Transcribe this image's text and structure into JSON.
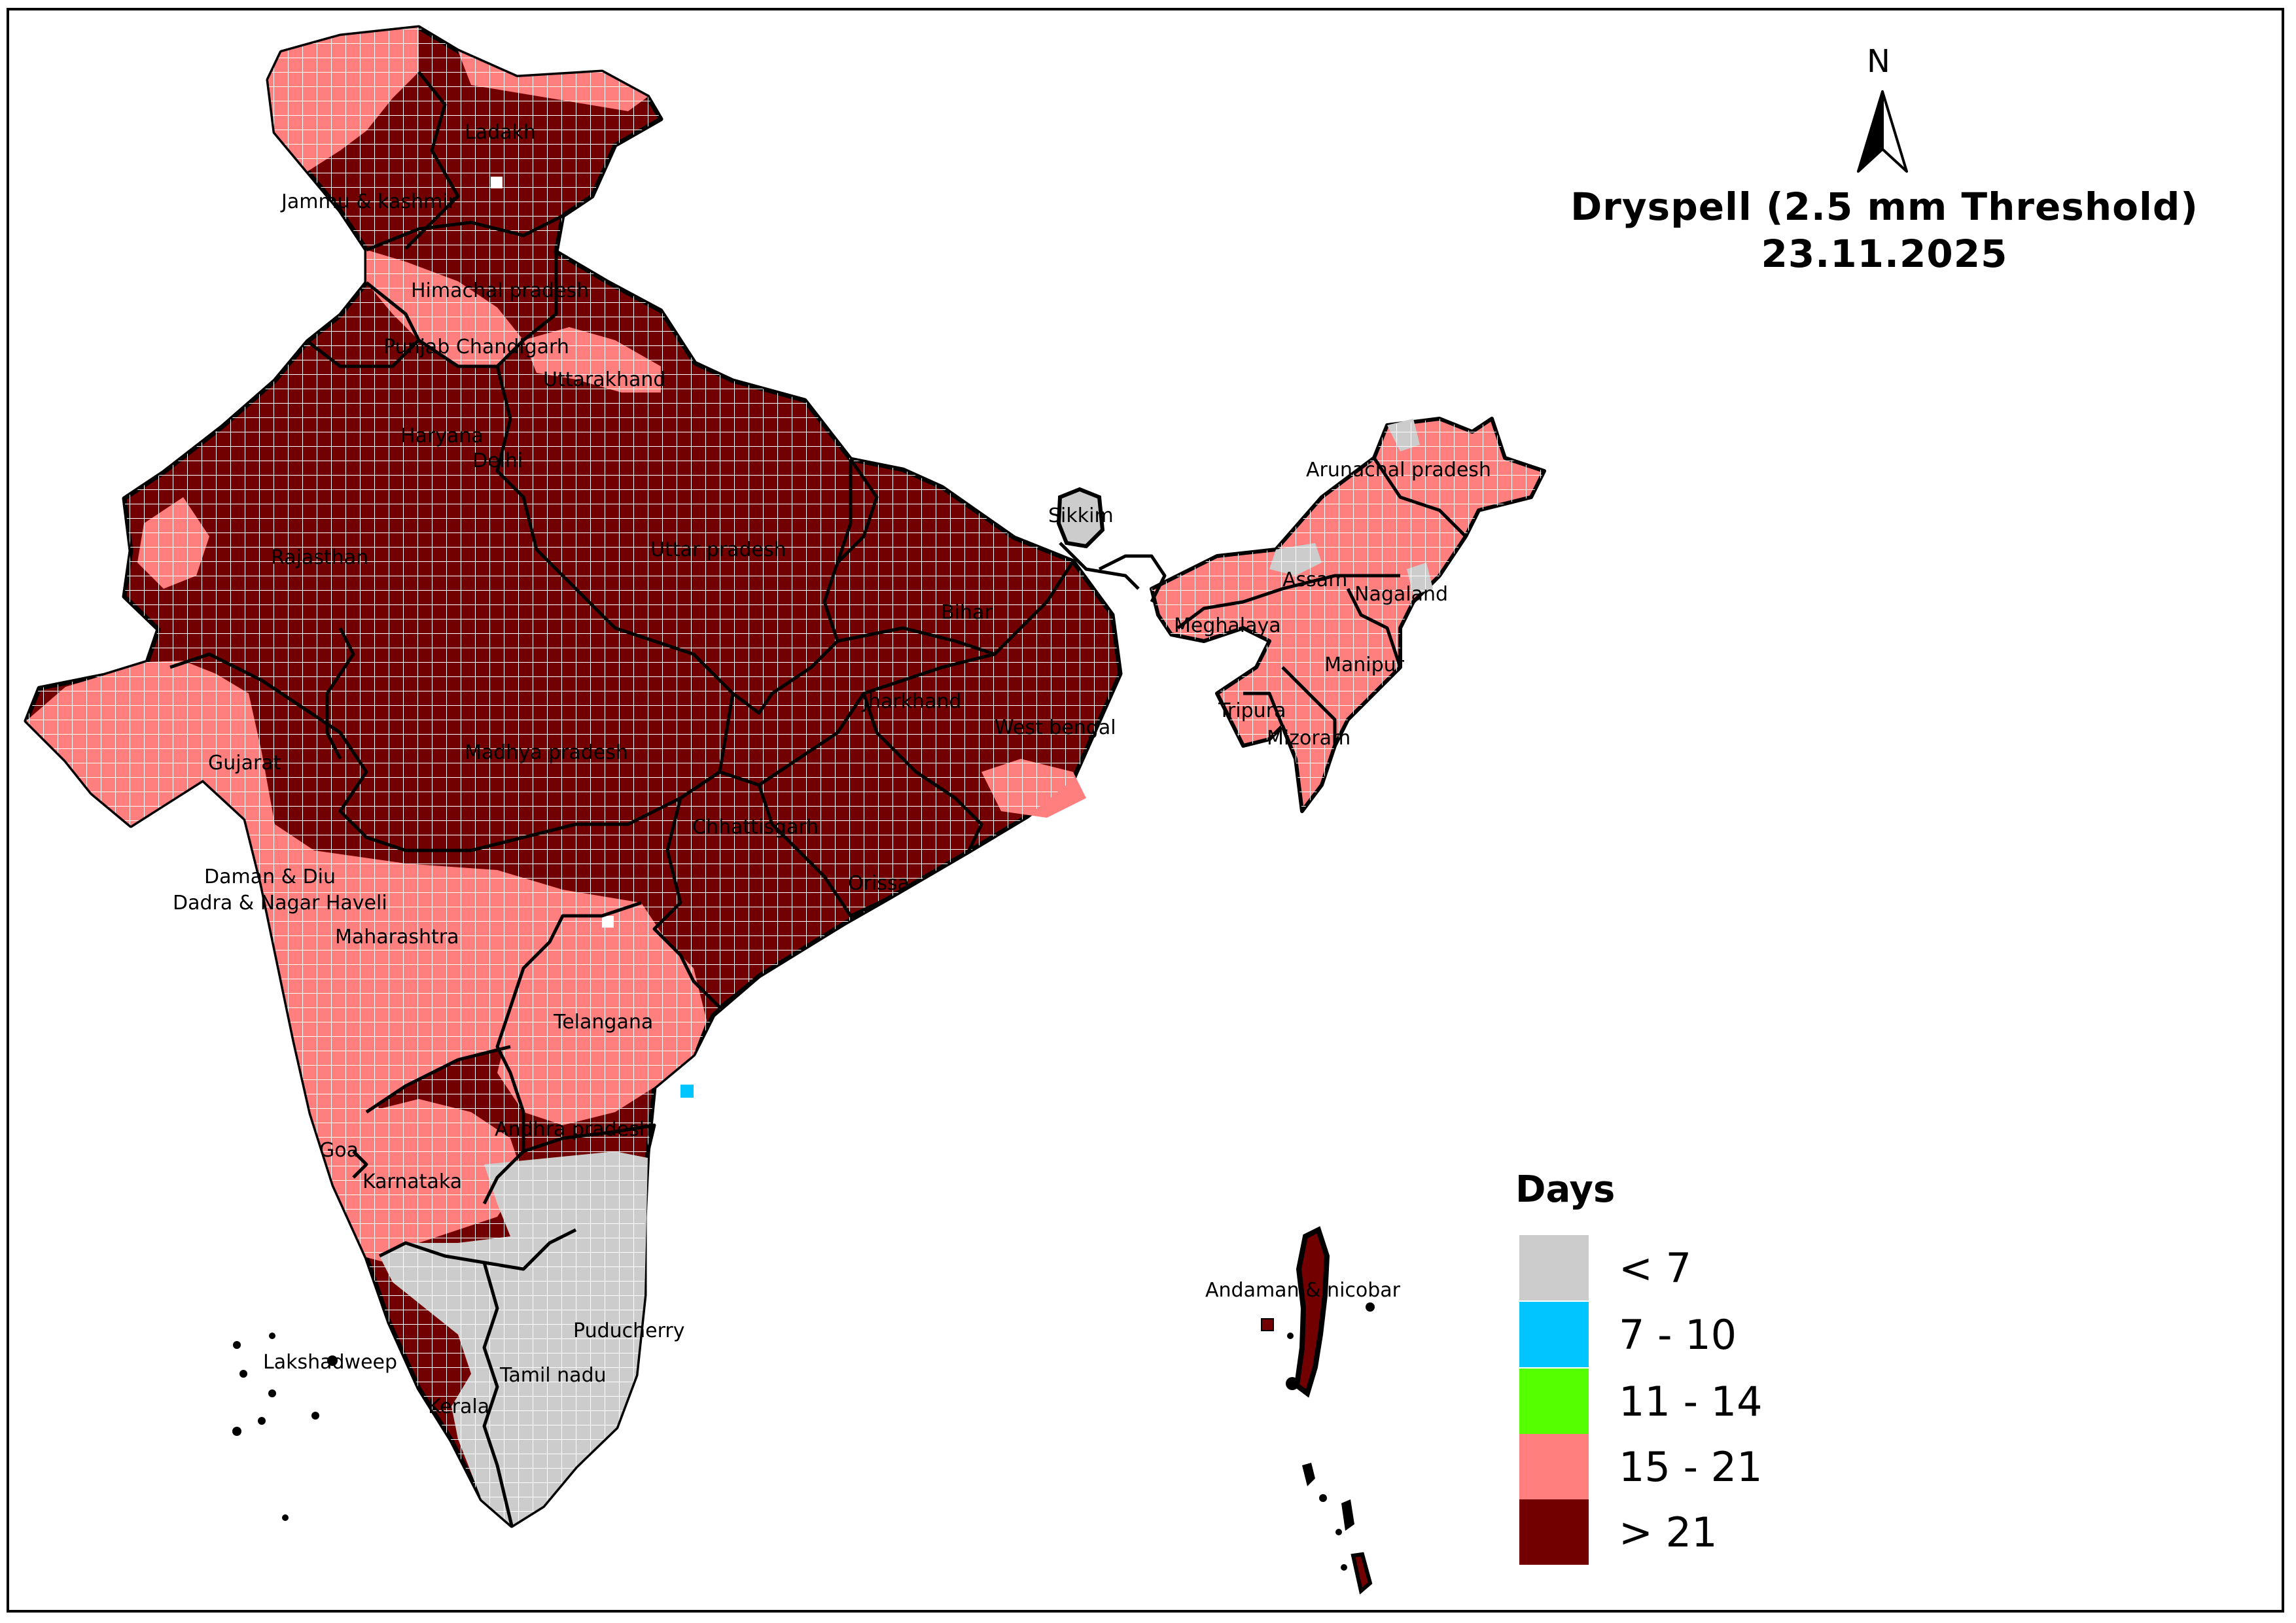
{
  "title": {
    "line1": "Dryspell (2.5 mm Threshold)",
    "line2": "23.11.2025"
  },
  "north_arrow": {
    "label": "N",
    "icon": "north-arrow-icon"
  },
  "legend": {
    "title": "Days",
    "items": [
      {
        "label": "< 7",
        "color": "#cccccc"
      },
      {
        "label": "7 - 10",
        "color": "#00c5ff"
      },
      {
        "label": "11 - 14",
        "color": "#55ff00"
      },
      {
        "label": "15 - 21",
        "color": "#ff7f7f"
      },
      {
        "label": "> 21",
        "color": "#730000"
      }
    ]
  },
  "map": {
    "region_names": {
      "ladakh": "Ladakh",
      "jammu_kashmir": "Jammu & kashmir",
      "himachal": "Himachal pradesh",
      "punjab": "Punjab Chandigarh",
      "uttarakhand": "Uttarakhand",
      "haryana": "Haryana",
      "delhi": "Delhi",
      "rajasthan": "Rajasthan",
      "uttar_pradesh": "Uttar pradesh",
      "bihar": "Bihar",
      "sikkim": "Sikkim",
      "arunachal": "Arunachal pradesh",
      "assam": "Assam",
      "nagaland": "Nagaland",
      "meghalaya": "Meghalaya",
      "manipur": "Manipur",
      "tripura": "Tripura",
      "mizoram": "Mizoram",
      "gujarat": "Gujarat",
      "madhya_pradesh": "Madhya pradesh",
      "jharkhand": "Jharkhand",
      "west_bengal": "West bengal",
      "chhattisgarh": "Chhattisgarh",
      "orissa": "Orissa",
      "daman_diu": "Daman & Diu",
      "dadra": "Dadra & Nagar Haveli",
      "maharashtra": "Maharashtra",
      "telangana": "Telangana",
      "andhra": "Andhra pradesh",
      "goa": "Goa",
      "karnataka": "Karnataka",
      "puducherry": "Puducherry",
      "lakshadweep": "Lakshadweep",
      "tamil_nadu": "Tamil nadu",
      "kerala": "Kerala",
      "andaman": "Andaman & nicobar"
    }
  }
}
